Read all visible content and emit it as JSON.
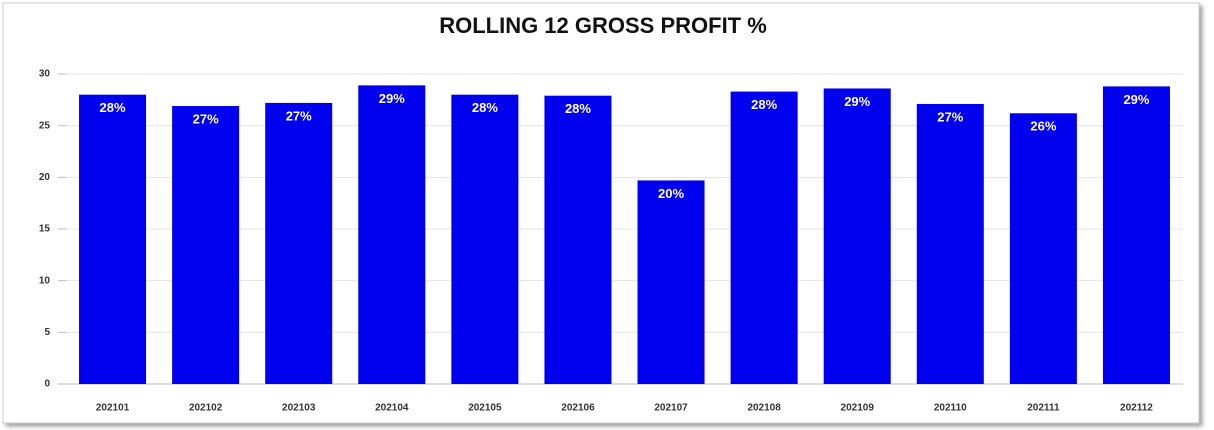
{
  "chart_data": {
    "type": "bar",
    "title": "ROLLING 12 GROSS PROFIT %",
    "categories": [
      "202101",
      "202102",
      "202103",
      "202104",
      "202105",
      "202106",
      "202107",
      "202108",
      "202109",
      "202110",
      "202111",
      "202112"
    ],
    "values": [
      28,
      26.9,
      27.2,
      28.9,
      28,
      27.9,
      19.7,
      28.3,
      28.6,
      27.1,
      26.2,
      28.8
    ],
    "value_labels": [
      "28%",
      "27%",
      "27%",
      "29%",
      "28%",
      "28%",
      "20%",
      "28%",
      "29%",
      "27%",
      "26%",
      "29%"
    ],
    "color": "#0000ee",
    "ylim": [
      0,
      30
    ],
    "yticks": [
      0,
      5,
      10,
      15,
      20,
      25,
      30
    ],
    "grid": true
  }
}
